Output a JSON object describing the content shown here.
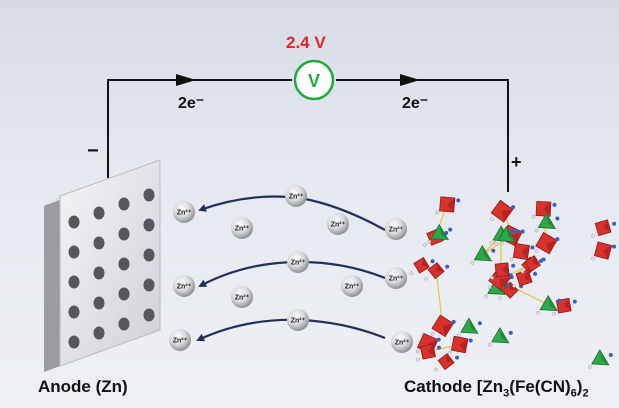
{
  "voltage": "2.4 V",
  "voltmeter_symbol": "V",
  "electron_label_left": "2e⁻",
  "electron_label_right": "2e⁻",
  "anode_sign": "−",
  "cathode_sign": "+",
  "anode_label": "Anode (Zn)",
  "cathode_label": {
    "prefix": "Cathode [Zn",
    "sub1": "3",
    "mid": "(Fe(CN)",
    "sub2": "6",
    ")": ")",
    "sub3": "2"
  },
  "ion_label": "Zn²⁺",
  "colors": {
    "voltage": "#e0262b",
    "voltmeter": "#1faa3a",
    "arrows": "#23305a",
    "octahedron_red": "#d9322e",
    "octahedron_green": "#2ea84a"
  }
}
